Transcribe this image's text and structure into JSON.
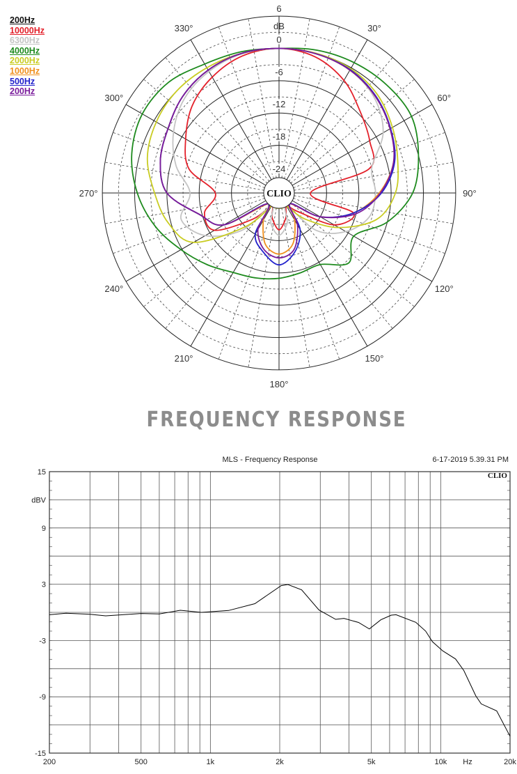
{
  "chart_data": [
    {
      "type": "polar",
      "unit_label": "dB",
      "center_label": "CLIO",
      "radial_ticks": [
        "6",
        "0",
        "-6",
        "-12",
        "-18",
        "-24"
      ],
      "radial_range": [
        -24,
        6
      ],
      "angle_labels": [
        "30°",
        "60°",
        "90°",
        "120°",
        "150°",
        "180°",
        "210°",
        "240°",
        "270°",
        "300°",
        "330°"
      ],
      "legend_title": "200Hz",
      "angles": [
        0,
        15,
        30,
        45,
        60,
        75,
        90,
        105,
        120,
        135,
        150,
        165,
        180,
        195,
        210,
        225,
        240,
        255,
        270,
        285,
        300,
        315,
        330,
        345
      ],
      "series": [
        {
          "name": "10000Hz",
          "color": "#e3202a",
          "values": [
            0,
            -0.7,
            -2.7,
            -5.5,
            -7.4,
            -9.5,
            -21,
            -12.5,
            -15,
            -22,
            -24,
            -22,
            -20,
            -22,
            -24,
            -20,
            -13,
            -12.5,
            -15,
            -9.5,
            -6.8,
            -4,
            -2,
            -0.5
          ]
        },
        {
          "name": "6300Hz",
          "color": "#c4c4c4",
          "values": [
            0,
            -0.1,
            -0.5,
            -1.8,
            -4.5,
            -9,
            -8.9,
            -9.5,
            -12.5,
            -17,
            -24,
            -21,
            -19,
            -21,
            -24,
            -17,
            -11,
            -8,
            -10.3,
            -7,
            -4.2,
            -2,
            -0.8,
            -0.1
          ]
        },
        {
          "name": "4000Hz",
          "color": "#1d8a1d",
          "values": [
            0,
            0.6,
            1.1,
            1.5,
            1.6,
            0,
            -2,
            -6,
            -10.8,
            -8.5,
            -11.5,
            -11.5,
            -11,
            -10.5,
            -9.8,
            -8,
            -5.8,
            -3,
            -0.5,
            1.5,
            2.5,
            2.2,
            0.8,
            0.3
          ]
        },
        {
          "name": "2000Hz",
          "color": "#c9cc22",
          "values": [
            0,
            0,
            -0.2,
            -1,
            -2.5,
            -4,
            -5.2,
            -8,
            -14,
            -20,
            -24,
            -24,
            -24,
            -24,
            -24,
            -18,
            -8.5,
            -5.5,
            -3.7,
            -1.5,
            -0.5,
            0,
            0,
            0
          ]
        },
        {
          "name": "1000Hz",
          "color": "#f0901e",
          "values": [
            0,
            -0.1,
            -0.5,
            -1.5,
            -3,
            -4.8,
            -8.2,
            -12.5,
            -18,
            -24,
            -21,
            -17,
            -15.5,
            -17,
            -21,
            -24,
            -15,
            -11.5,
            -6,
            -4,
            -3,
            -1.5,
            -0.5,
            0
          ]
        },
        {
          "name": "500Hz",
          "color": "#2222cc",
          "values": [
            0,
            -0.1,
            -0.4,
            -1.4,
            -2.9,
            -4.6,
            -7.8,
            -12.5,
            -18,
            -24,
            -19,
            -15.5,
            -13.5,
            -15.5,
            -18,
            -24,
            -15,
            -11.5,
            -6,
            -4,
            -3,
            -1.5,
            -0.5,
            0
          ]
        },
        {
          "name": "200Hz",
          "color": "#7a1c9c",
          "values": [
            0,
            -0.1,
            -0.5,
            -1.5,
            -3,
            -4.8,
            -8,
            -12,
            -18,
            -24,
            -20,
            -16,
            -14.8,
            -16,
            -19,
            -24,
            -15,
            -11.5,
            -6,
            -4,
            -3,
            -1.5,
            -0.5,
            0
          ]
        }
      ]
    },
    {
      "type": "line",
      "heading": "FREQUENCY RESPONSE",
      "title": "MLS - Frequency Response",
      "timestamp": "6-17-2019 5.39.31 PM",
      "watermark": "CLIO",
      "ylabel": "dBV",
      "xlabel": "Hz",
      "xscale": "log",
      "xlim": [
        200,
        20000
      ],
      "ylim": [
        -15,
        15
      ],
      "grid": true,
      "y_ticks": [
        "15",
        "9",
        "3",
        "-3",
        "-9",
        "-15"
      ],
      "x_ticks": [
        "200",
        "500",
        "1k",
        "2k",
        "5k",
        "10k",
        "20k"
      ],
      "x": [
        200,
        236,
        300,
        351,
        500,
        600,
        740,
        915,
        1200,
        1560,
        2030,
        2170,
        2490,
        2960,
        3500,
        3800,
        4400,
        4900,
        5500,
        6100,
        6400,
        7800,
        8600,
        9200,
        10200,
        11600,
        12600,
        14200,
        15000,
        17500,
        20000
      ],
      "y": [
        -0.25,
        -0.1,
        -0.2,
        -0.37,
        -0.12,
        -0.17,
        0.22,
        0,
        0.2,
        0.93,
        2.85,
        2.97,
        2.4,
        0.25,
        -0.74,
        -0.64,
        -1.08,
        -1.77,
        -0.79,
        -0.3,
        -0.25,
        -1.06,
        -2.0,
        -3.12,
        -4.1,
        -4.97,
        -6.2,
        -8.9,
        -9.76,
        -10.5,
        -13.2
      ],
      "line_color": "#000000"
    }
  ]
}
